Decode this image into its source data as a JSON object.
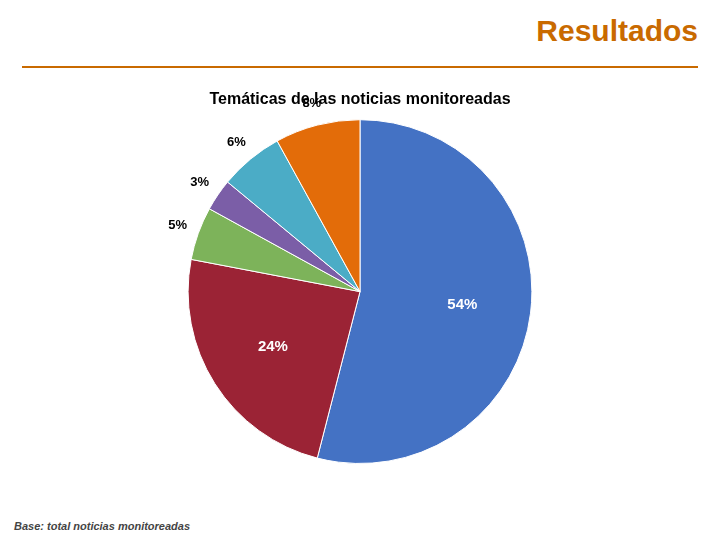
{
  "chart_data": {
    "type": "pie",
    "title": "Temáticas de las noticias monitoreadas",
    "annotations": [
      "Resultados",
      "Base: total noticias monitoreadas"
    ],
    "values": [
      54,
      24,
      5,
      3,
      6,
      8
    ],
    "value_labels": [
      "54%",
      "24%",
      "5%",
      "3%",
      "6%",
      "8%"
    ],
    "colors": [
      "#4472C4",
      "#9B2335",
      "#7DB35A",
      "#7B5EA7",
      "#4BACC6",
      "#E36C09"
    ],
    "data_labels": true,
    "legend": false
  }
}
